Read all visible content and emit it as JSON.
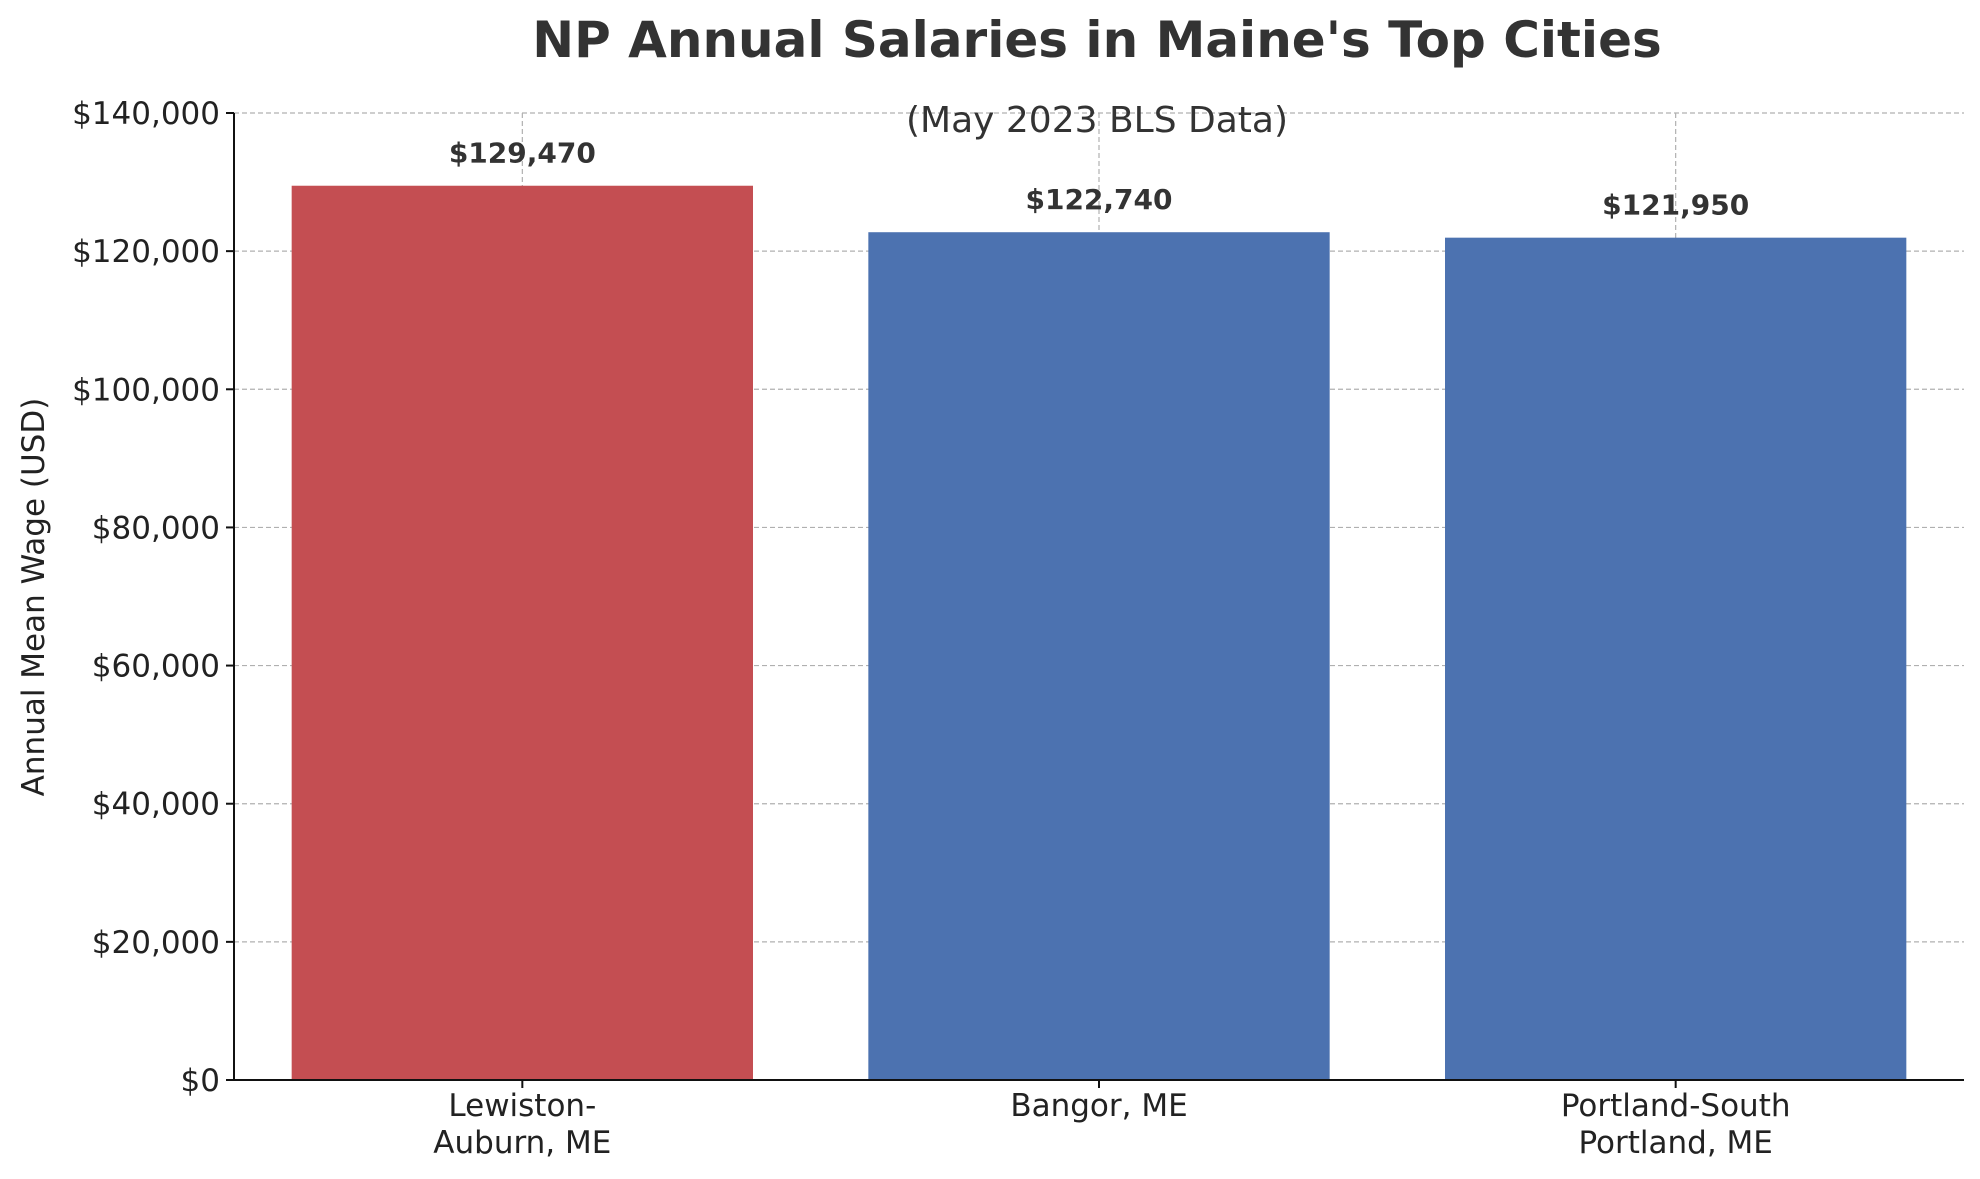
{
  "chart_data": {
    "type": "bar",
    "title": "NP Annual Salaries in Maine's Top Cities",
    "subtitle": "(May 2023 BLS Data)",
    "xlabel": "",
    "ylabel": "Annual Mean Wage (USD)",
    "categories": [
      [
        "Lewiston-",
        "Auburn, ME"
      ],
      [
        "Bangor, ME"
      ],
      [
        "Portland-South",
        "Portland, ME"
      ]
    ],
    "values": [
      129470,
      122740,
      121950
    ],
    "value_labels": [
      "$129,470",
      "$122,740",
      "$121,950"
    ],
    "bar_colors": [
      "#c44e52",
      "#4c72b0",
      "#4c72b0"
    ],
    "ylim": [
      0,
      140000
    ],
    "yticks": [
      0,
      20000,
      40000,
      60000,
      80000,
      100000,
      120000,
      140000
    ],
    "ytick_labels": [
      "$0",
      "$20,000",
      "$40,000",
      "$60,000",
      "$80,000",
      "$100,000",
      "$120,000",
      "$140,000"
    ],
    "grid": true
  }
}
